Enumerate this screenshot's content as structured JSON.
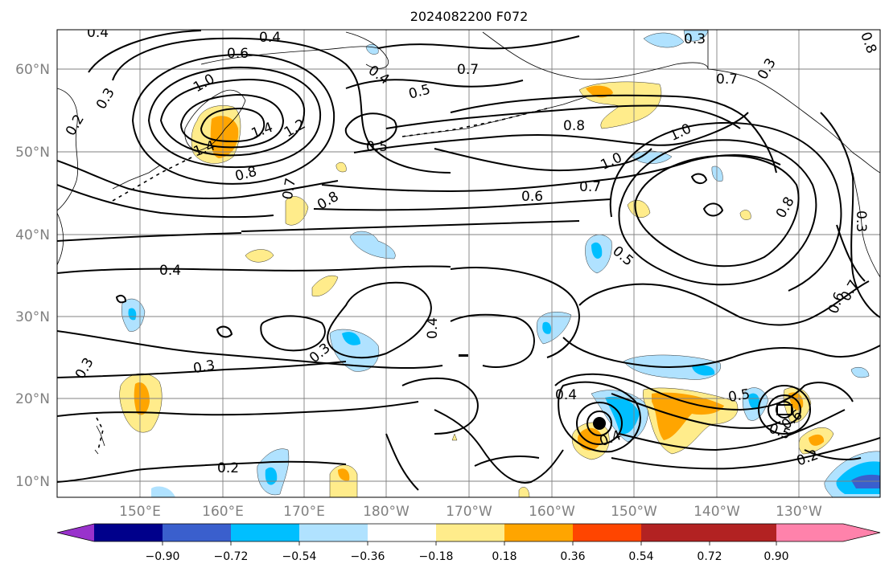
{
  "title": "2024082200 F072",
  "lat_labels": [
    "60°N",
    "50°N",
    "40°N",
    "30°N",
    "20°N",
    "10°N"
  ],
  "lon_labels": [
    "150°E",
    "160°E",
    "170°E",
    "180°W",
    "170°W",
    "160°W",
    "150°W",
    "140°W",
    "130°W"
  ],
  "colorbar": {
    "ticks": [
      "−0.90",
      "−0.72",
      "−0.54",
      "−0.36",
      "−0.18",
      "0.18",
      "0.36",
      "0.54",
      "0.72",
      "0.90"
    ],
    "colors": [
      "#9932cc",
      "#00008b",
      "#3a5fcd",
      "#00bfff",
      "#b0e2ff",
      "#ffffff",
      "#ffec8b",
      "#ffa500",
      "#ff4500",
      "#b22222",
      "#ff82ab"
    ]
  },
  "contour_labels": [
    "0.4",
    "0.4",
    "0.6",
    "0.7",
    "0.3",
    "0.3",
    "0.2",
    "1.0",
    "1.4",
    "1.4",
    "1.2",
    "0.4",
    "0.5",
    "0.5",
    "0.7",
    "0.3",
    "0.8",
    "1.0",
    "1.0",
    "0.8",
    "0.8",
    "0.7",
    "0.8",
    "0.6",
    "0.7",
    "0.8",
    "0.3",
    "0.5",
    "0.4",
    "0.6",
    "0.7",
    "0.4",
    "0.3",
    "0.3",
    "0.3",
    "0.4",
    "0.4",
    "0.5",
    "0.5",
    "0.6",
    "0.2",
    "0.2"
  ],
  "colors": {
    "contour": "#000000",
    "grid": "#808080",
    "coast": "#000000"
  }
}
